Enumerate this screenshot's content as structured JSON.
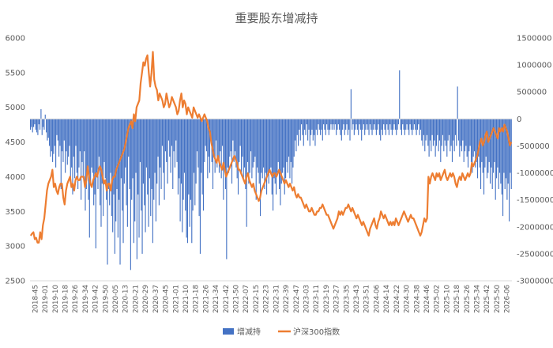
{
  "chart_data": {
    "type": "bar+line",
    "title": "重要股东增减持",
    "legend_position": "bottom",
    "grid": false,
    "left_axis": {
      "ylim": [
        2500,
        6000
      ],
      "ticks": [
        2500,
        3000,
        3500,
        4000,
        4500,
        5000,
        5500,
        6000
      ],
      "labels": [
        "2500",
        "3000",
        "3500",
        "4000",
        "4500",
        "5000",
        "5500",
        "6000"
      ]
    },
    "right_axis": {
      "ylim": [
        -3000000,
        1500000
      ],
      "ticks": [
        -3000000,
        -2500000,
        -2000000,
        -1500000,
        -1000000,
        -500000,
        0,
        500000,
        1000000,
        1500000
      ],
      "labels": [
        "-3000000",
        "-2500000",
        "-2000000",
        "-1500000",
        "-1000000",
        "-500000",
        "0",
        "500000",
        "1000000",
        "1500000"
      ]
    },
    "x_labels": [
      "2018-45",
      "2019-01",
      "2019-10",
      "2019-18",
      "2019-26",
      "2019-34",
      "2019-42",
      "2019-50",
      "2020-05",
      "2020-13",
      "2020-21",
      "2020-29",
      "2020-37",
      "2020-45",
      "2021-01",
      "2021-10",
      "2021-18",
      "2021-26",
      "2021-34",
      "2021-42",
      "2021-50",
      "2022-07",
      "2022-15",
      "2022-23",
      "2022-31",
      "2022-39",
      "2022-47",
      "2023-03",
      "2023-11",
      "2023-19",
      "2023-27",
      "2023-35",
      "2023-43",
      "2023-51",
      "2024-06",
      "2024-14",
      "2024-22",
      "2024-30",
      "2024-38",
      "2024-46",
      "2025-02",
      "2025-10",
      "2025-18",
      "2025-26",
      "2025-34",
      "2025-42",
      "2025-50",
      "2026-06"
    ],
    "series": [
      {
        "name": "增减持",
        "type": "bar",
        "axis": "right",
        "color": "#4472C4",
        "values": [
          -200000,
          -150000,
          -250000,
          -150000,
          -100000,
          -200000,
          -250000,
          -300000,
          -100000,
          -200000,
          180000,
          -300000,
          -150000,
          -200000,
          80000,
          -250000,
          -400000,
          -350000,
          -500000,
          -700000,
          -600000,
          -800000,
          -650000,
          -500000,
          -900000,
          -300000,
          -400000,
          -700000,
          -500000,
          -1300000,
          -600000,
          -800000,
          -400000,
          -1000000,
          -600000,
          -850000,
          -700000,
          -500000,
          -1200000,
          -900000,
          -1400000,
          -700000,
          -1100000,
          -500000,
          -1000000,
          -1300000,
          -900000,
          -600000,
          -1500000,
          -800000,
          -1100000,
          -600000,
          -1700000,
          -1300000,
          -1000000,
          -1500000,
          -2200000,
          -1200000,
          -900000,
          -1000000,
          -1600000,
          -1400000,
          -2400000,
          -1000000,
          -1300000,
          -700000,
          -1600000,
          -2000000,
          -1200000,
          -1800000,
          -800000,
          -1100000,
          -1500000,
          -2700000,
          -1300000,
          -1600000,
          -1000000,
          -1800000,
          -2100000,
          -1400000,
          -2500000,
          -1900000,
          -1300000,
          -2200000,
          -1500000,
          -2700000,
          -1100000,
          -1700000,
          -2300000,
          -1200000,
          -900000,
          -1600000,
          -2000000,
          -700000,
          -1300000,
          -2800000,
          -1500000,
          -1100000,
          -2300000,
          -1900000,
          -1000000,
          -2600000,
          -1400000,
          -2200000,
          -800000,
          -1700000,
          -2500000,
          -1200000,
          -1600000,
          -2100000,
          -900000,
          -1400000,
          -2000000,
          -1100000,
          -1800000,
          -1300000,
          -2300000,
          -1500000,
          -1000000,
          -1900000,
          -1200000,
          -700000,
          -1600000,
          -900000,
          -1300000,
          -500000,
          -1000000,
          -1500000,
          -600000,
          -800000,
          -1200000,
          -400000,
          -700000,
          -1000000,
          -500000,
          -1300000,
          -600000,
          -900000,
          -400000,
          -800000,
          -1400000,
          -1100000,
          -1900000,
          -1200000,
          -2100000,
          -1500000,
          -1000000,
          -1700000,
          -2200000,
          -2300000,
          -1400000,
          -2000000,
          -1500000,
          -2300000,
          -1700000,
          -1000000,
          -1600000,
          -1200000,
          -600000,
          -900000,
          -1800000,
          -2500000,
          -1000000,
          -1400000,
          -1700000,
          -800000,
          -500000,
          -600000,
          -1100000,
          -700000,
          -1000000,
          -400000,
          -800000,
          -1300000,
          -700000,
          -1000000,
          -400000,
          -900000,
          -700000,
          -1000000,
          -600000,
          -1100000,
          -500000,
          -1500000,
          -900000,
          -1300000,
          -2600000,
          -900000,
          -1000000,
          -700000,
          -600000,
          -1200000,
          -400000,
          -800000,
          -600000,
          -900000,
          -1100000,
          -1400000,
          -800000,
          -500000,
          -1000000,
          -700000,
          -1100000,
          -900000,
          -1300000,
          -2000000,
          -800000,
          -1200000,
          -1000000,
          -600000,
          -1100000,
          -900000,
          -800000,
          -700000,
          -1500000,
          -900000,
          -1000000,
          -1200000,
          -1800000,
          -1000000,
          -1100000,
          -900000,
          -1300000,
          -1000000,
          -1400000,
          -1000000,
          -1200000,
          -1000000,
          -900000,
          -1400000,
          -1700000,
          -1100000,
          -1200000,
          -1400000,
          -1000000,
          -800000,
          -1300000,
          -1600000,
          -1200000,
          -1000000,
          -900000,
          -1400000,
          -1100000,
          -800000,
          -1000000,
          -700000,
          -1100000,
          -800000,
          -1200000,
          -900000,
          -700000,
          -400000,
          -600000,
          -300000,
          -500000,
          -200000,
          -400000,
          -100000,
          -300000,
          -500000,
          -200000,
          -300000,
          -100000,
          -400000,
          -200000,
          -500000,
          -300000,
          -200000,
          -400000,
          -300000,
          -500000,
          -200000,
          -300000,
          -100000,
          -200000,
          -300000,
          -200000,
          -400000,
          -100000,
          -200000,
          -300000,
          -100000,
          -200000,
          -300000,
          -200000,
          -100000,
          -200000,
          -100000,
          -200000,
          -100000,
          -300000,
          -200000,
          -100000,
          -200000,
          -300000,
          -400000,
          -200000,
          -100000,
          -300000,
          -200000,
          -100000,
          -300000,
          -200000,
          -400000,
          550000,
          -200000,
          -100000,
          -300000,
          -200000,
          -100000,
          -200000,
          -300000,
          -100000,
          -200000,
          -400000,
          -200000,
          -100000,
          -300000,
          -200000,
          -100000,
          -200000,
          -300000,
          -100000,
          -200000,
          -300000,
          -200000,
          -100000,
          -200000,
          -300000,
          -200000,
          -100000,
          -300000,
          -400000,
          -200000,
          -300000,
          -100000,
          -200000,
          -300000,
          -100000,
          -200000,
          -300000,
          -100000,
          -200000,
          -300000,
          -200000,
          -100000,
          -200000,
          -300000,
          -200000,
          -100000,
          900000,
          -200000,
          -300000,
          -100000,
          -200000,
          -300000,
          -200000,
          -100000,
          -200000,
          -300000,
          -100000,
          -200000,
          -300000,
          -200000,
          -100000,
          -200000,
          -300000,
          -200000,
          -100000,
          -300000,
          -200000,
          -400000,
          -500000,
          -300000,
          -600000,
          -400000,
          -300000,
          -500000,
          -700000,
          -400000,
          -600000,
          -300000,
          -500000,
          -400000,
          -700000,
          -500000,
          -300000,
          -600000,
          -400000,
          -800000,
          -500000,
          -300000,
          -600000,
          -400000,
          -500000,
          -700000,
          -400000,
          -300000,
          -600000,
          -500000,
          -800000,
          -400000,
          -600000,
          -300000,
          -500000,
          600000,
          -400000,
          -700000,
          -500000,
          -600000,
          -400000,
          -800000,
          -600000,
          -500000,
          -700000,
          -900000,
          -600000,
          -500000,
          -800000,
          -1000000,
          -700000,
          -600000,
          -900000,
          -800000,
          -1100000,
          -700000,
          -900000,
          -1300000,
          -800000,
          -1000000,
          -1400000,
          -900000,
          -700000,
          -1100000,
          -1000000,
          -800000,
          -1200000,
          -900000,
          -1300000,
          -1000000,
          -800000,
          -1500000,
          -1100000,
          -900000,
          -1300000,
          -1000000,
          -1200000,
          -1400000,
          -1800000,
          -1000000,
          -1300000,
          -1100000,
          -1500000,
          -1200000,
          -1900000,
          -1000000,
          -1300000
        ]
      },
      {
        "name": "沪深300指数",
        "type": "line",
        "axis": "left",
        "color": "#ED7D31",
        "values": [
          3150,
          3180,
          3200,
          3100,
          3120,
          3050,
          3050,
          3200,
          3100,
          3300,
          3400,
          3600,
          3800,
          3900,
          3950,
          4000,
          4100,
          3850,
          3900,
          3800,
          3750,
          3850,
          3900,
          3900,
          3700,
          3600,
          3800,
          3900,
          3950,
          4000,
          3850,
          3900,
          3800,
          3950,
          4000,
          3950,
          3950,
          4000,
          4000,
          4000,
          3850,
          3950,
          4150,
          4000,
          3900,
          3850,
          3950,
          4000,
          4050,
          4000,
          4100,
          4150,
          4100,
          4000,
          3900,
          3950,
          3800,
          3900,
          3900,
          3800,
          3950,
          4000,
          4000,
          4100,
          4150,
          4200,
          4250,
          4300,
          4350,
          4400,
          4500,
          4600,
          4700,
          4750,
          4800,
          4700,
          4900,
          4800,
          5000,
          5050,
          5100,
          5350,
          5500,
          5650,
          5600,
          5700,
          5750,
          5500,
          5300,
          5500,
          5800,
          5400,
          5300,
          5250,
          5100,
          5200,
          5150,
          5100,
          5000,
          5050,
          5200,
          5100,
          5000,
          5050,
          5150,
          5100,
          5050,
          5000,
          4900,
          4950,
          5100,
          5200,
          5000,
          5100,
          5050,
          4900,
          5000,
          4950,
          4900,
          4850,
          5000,
          4950,
          4900,
          4850,
          4900,
          4850,
          4800,
          4850,
          4900,
          4850,
          4800,
          4700,
          4650,
          4500,
          4400,
          4300,
          4250,
          4200,
          4300,
          4200,
          4150,
          4100,
          4200,
          4100,
          4000,
          4050,
          4100,
          4150,
          4200,
          4250,
          4300,
          4250,
          4200,
          4100,
          4100,
          4050,
          4000,
          3950,
          3900,
          4000,
          4050,
          3950,
          3900,
          3850,
          3900,
          3800,
          3750,
          3700,
          3650,
          3700,
          3800,
          3850,
          3900,
          3950,
          4000,
          4050,
          4100,
          4050,
          4000,
          4050,
          4050,
          4000,
          4050,
          4100,
          4050,
          4000,
          3950,
          3900,
          3950,
          3900,
          3850,
          3900,
          3850,
          3800,
          3850,
          3750,
          3700,
          3750,
          3700,
          3700,
          3650,
          3600,
          3550,
          3600,
          3550,
          3500,
          3500,
          3550,
          3500,
          3450,
          3450,
          3500,
          3500,
          3550,
          3550,
          3600,
          3550,
          3500,
          3450,
          3450,
          3400,
          3350,
          3300,
          3250,
          3300,
          3350,
          3400,
          3500,
          3450,
          3500,
          3450,
          3500,
          3550,
          3550,
          3600,
          3550,
          3500,
          3550,
          3500,
          3450,
          3400,
          3450,
          3400,
          3350,
          3300,
          3350,
          3300,
          3250,
          3200,
          3150,
          3250,
          3300,
          3350,
          3400,
          3300,
          3250,
          3350,
          3400,
          3500,
          3450,
          3400,
          3450,
          3400,
          3350,
          3300,
          3350,
          3300,
          3350,
          3300,
          3400,
          3350,
          3300,
          3350,
          3400,
          3450,
          3500,
          3450,
          3400,
          3350,
          3400,
          3450,
          3400,
          3400,
          3350,
          3300,
          3250,
          3200,
          3150,
          3200,
          3300,
          3400,
          3350,
          3400,
          4000,
          3900,
          4000,
          4050,
          4000,
          3950,
          4050,
          4000,
          4050,
          3950,
          4000,
          4050,
          4100,
          4000,
          3950,
          4000,
          4050,
          4000,
          4050,
          4000,
          3900,
          3850,
          3950,
          4000,
          3950,
          4050,
          4000,
          3950,
          4000,
          4050,
          4000,
          4050,
          4200,
          4150,
          4200,
          4250,
          4300,
          4400,
          4500,
          4550,
          4450,
          4500,
          4600,
          4650,
          4500,
          4550,
          4600,
          4650,
          4700,
          4650,
          4600,
          4550,
          4700,
          4650,
          4700,
          4650,
          4750,
          4700,
          4650,
          4550,
          4450,
          4500
        ]
      }
    ]
  }
}
